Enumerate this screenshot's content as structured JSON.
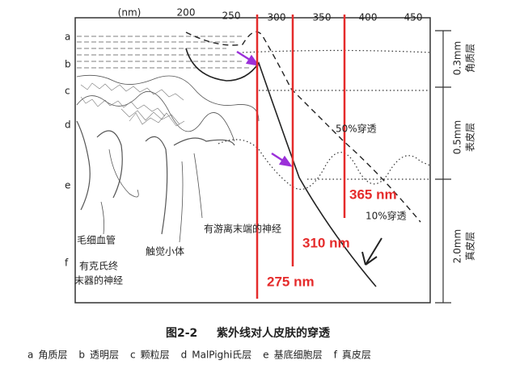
{
  "axis": {
    "unit": "(nm)",
    "ticks": [
      "200",
      "250",
      "300",
      "350",
      "400",
      "450"
    ]
  },
  "layer_letters": [
    "a",
    "b",
    "c",
    "d",
    "e",
    "f"
  ],
  "thickness": [
    {
      "depth": "0.3mm",
      "name": "角质层"
    },
    {
      "depth": "0.5mm",
      "name": "表皮层"
    },
    {
      "depth": "2.0mm",
      "name": "真皮层"
    }
  ],
  "curves": {
    "fifty": "50%穿透",
    "ten": "10%穿透"
  },
  "markers": [
    "365 nm",
    "310 nm",
    "275 nm"
  ],
  "anatomy": [
    "毛细血管",
    "有克氏终",
    "末器的神经",
    "触觉小体",
    "有游离末端的神经"
  ],
  "caption": {
    "number": "图2-2",
    "title": "紫外线对人皮肤的穿透"
  },
  "legend": [
    {
      "key": "a",
      "label": "角质层"
    },
    {
      "key": "b",
      "label": "透明层"
    },
    {
      "key": "c",
      "label": "颗粒层"
    },
    {
      "key": "d",
      "label": "MalPighi氏层"
    },
    {
      "key": "e",
      "label": "基底细胞层"
    },
    {
      "key": "f",
      "label": "真皮层"
    }
  ]
}
